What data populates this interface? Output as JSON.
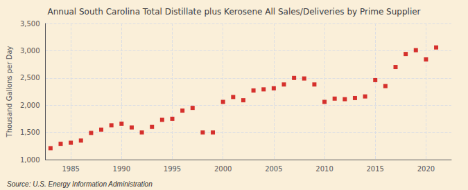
{
  "chart_data": {
    "type": "scatter",
    "title": "Annual South Carolina Total Distillate plus Kerosene All Sales/Deliveries by Prime Supplier",
    "ylabel": "Thousand Gallons per Day",
    "annotations": [
      "Source: U.S. Energy Information Administration"
    ],
    "x": [
      1983,
      1984,
      1985,
      1986,
      1987,
      1988,
      1989,
      1990,
      1991,
      1992,
      1993,
      1994,
      1995,
      1996,
      1997,
      1998,
      1999,
      2000,
      2001,
      2002,
      2003,
      2004,
      2005,
      2006,
      2007,
      2008,
      2009,
      2010,
      2011,
      2012,
      2013,
      2014,
      2015,
      2016,
      2017,
      2018,
      2019,
      2020,
      2021
    ],
    "values": [
      1210,
      1290,
      1310,
      1350,
      1490,
      1550,
      1630,
      1660,
      1590,
      1500,
      1600,
      1730,
      1750,
      1900,
      1950,
      1500,
      1500,
      2060,
      2150,
      2090,
      2270,
      2290,
      2310,
      2380,
      2500,
      2490,
      2380,
      2060,
      2120,
      2110,
      2130,
      2160,
      2460,
      2350,
      2700,
      2940,
      3010,
      2840,
      3060
    ],
    "color": "#cc0000",
    "marker": "square",
    "xlim": [
      1982.5,
      2022.5
    ],
    "xticks": [
      1985,
      1990,
      1995,
      2000,
      2005,
      2010,
      2015,
      2020
    ],
    "ylim": [
      1000,
      3500
    ],
    "yticks": [
      {
        "value": 1000,
        "label": "1,000"
      },
      {
        "value": 1500,
        "label": "1,500"
      },
      {
        "value": 2000,
        "label": "2,000"
      },
      {
        "value": 2500,
        "label": "2,500"
      },
      {
        "value": 3000,
        "label": "3,000"
      },
      {
        "value": 3500,
        "label": "3,500"
      }
    ],
    "grid": true
  }
}
